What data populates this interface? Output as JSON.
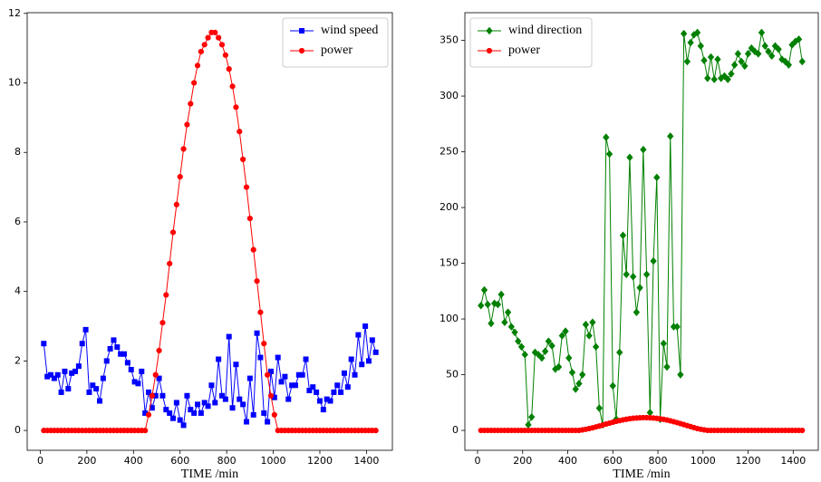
{
  "chart_data": [
    {
      "type": "line",
      "xlabel": "TIME /min",
      "x": [
        15,
        30,
        45,
        60,
        75,
        90,
        105,
        120,
        135,
        150,
        165,
        180,
        195,
        210,
        225,
        240,
        255,
        270,
        285,
        300,
        315,
        330,
        345,
        360,
        375,
        390,
        405,
        420,
        435,
        450,
        465,
        480,
        495,
        510,
        525,
        540,
        555,
        570,
        585,
        600,
        615,
        630,
        645,
        660,
        675,
        690,
        705,
        720,
        735,
        750,
        765,
        780,
        795,
        810,
        825,
        840,
        855,
        870,
        885,
        900,
        915,
        930,
        945,
        960,
        975,
        990,
        1005,
        1020,
        1035,
        1050,
        1065,
        1080,
        1095,
        1110,
        1125,
        1140,
        1155,
        1170,
        1185,
        1200,
        1215,
        1230,
        1245,
        1260,
        1275,
        1290,
        1305,
        1320,
        1335,
        1350,
        1365,
        1380,
        1395,
        1410,
        1425,
        1440
      ],
      "series": [
        {
          "name": "wind speed",
          "color": "#0000ff",
          "marker": "square",
          "values": [
            2.5,
            1.55,
            1.6,
            1.5,
            1.6,
            1.1,
            1.7,
            1.2,
            1.65,
            1.7,
            1.85,
            2.5,
            2.9,
            1.1,
            1.3,
            1.2,
            0.85,
            1.5,
            2.0,
            2.35,
            2.6,
            2.4,
            2.2,
            2.2,
            1.95,
            1.75,
            1.4,
            1.35,
            1.7,
            0.5,
            1.1,
            0.65,
            1.0,
            1.5,
            1.0,
            0.6,
            0.5,
            0.35,
            0.8,
            0.3,
            0.15,
            1.0,
            0.6,
            0.5,
            0.75,
            0.5,
            0.8,
            0.7,
            1.3,
            0.8,
            2.05,
            1.0,
            0.9,
            2.7,
            0.65,
            1.9,
            0.9,
            0.75,
            0.25,
            1.5,
            0.45,
            2.8,
            2.1,
            0.5,
            0.25,
            1.7,
            0.95,
            2.1,
            1.4,
            1.55,
            0.9,
            1.3,
            1.3,
            1.6,
            1.6,
            2.05,
            1.15,
            1.25,
            1.1,
            0.85,
            0.6,
            0.9,
            0.85,
            1.1,
            1.3,
            1.1,
            1.65,
            1.25,
            2.05,
            1.6,
            2.75,
            1.9,
            3.0,
            2.0,
            2.6,
            2.25
          ]
        },
        {
          "name": "power",
          "color": "#ff0000",
          "marker": "circle",
          "values": [
            0,
            0,
            0,
            0,
            0,
            0,
            0,
            0,
            0,
            0,
            0,
            0,
            0,
            0,
            0,
            0,
            0,
            0,
            0,
            0,
            0,
            0,
            0,
            0,
            0,
            0,
            0,
            0,
            0,
            0,
            0.45,
            1.0,
            1.6,
            2.3,
            3.1,
            3.9,
            4.8,
            5.7,
            6.5,
            7.3,
            8.1,
            8.8,
            9.4,
            10.0,
            10.5,
            10.9,
            11.1,
            11.3,
            11.45,
            11.45,
            11.3,
            11.1,
            10.8,
            10.4,
            9.9,
            9.3,
            8.6,
            7.8,
            7.0,
            6.1,
            5.2,
            4.3,
            3.4,
            2.5,
            1.6,
            1.0,
            0.45,
            0,
            0,
            0,
            0,
            0,
            0,
            0,
            0,
            0,
            0,
            0,
            0,
            0,
            0,
            0,
            0,
            0,
            0,
            0,
            0,
            0,
            0,
            0,
            0,
            0,
            0,
            0,
            0,
            0
          ]
        }
      ],
      "xlim": [
        -56.25,
        1511.25
      ],
      "xticks": [
        0,
        200,
        400,
        600,
        800,
        1000,
        1200,
        1400
      ],
      "ylim": [
        -0.57,
        12.02
      ],
      "yticks": [
        0,
        2,
        4,
        6,
        8,
        10,
        12
      ],
      "legend": "upper right"
    },
    {
      "type": "line",
      "xlabel": "TIME /min",
      "x": [
        15,
        30,
        45,
        60,
        75,
        90,
        105,
        120,
        135,
        150,
        165,
        180,
        195,
        210,
        225,
        240,
        255,
        270,
        285,
        300,
        315,
        330,
        345,
        360,
        375,
        390,
        405,
        420,
        435,
        450,
        465,
        480,
        495,
        510,
        525,
        540,
        555,
        570,
        585,
        600,
        615,
        630,
        645,
        660,
        675,
        690,
        705,
        720,
        735,
        750,
        765,
        780,
        795,
        810,
        825,
        840,
        855,
        870,
        885,
        900,
        915,
        930,
        945,
        960,
        975,
        990,
        1005,
        1020,
        1035,
        1050,
        1065,
        1080,
        1095,
        1110,
        1125,
        1140,
        1155,
        1170,
        1185,
        1200,
        1215,
        1230,
        1245,
        1260,
        1275,
        1290,
        1305,
        1320,
        1335,
        1350,
        1365,
        1380,
        1395,
        1410,
        1425,
        1440
      ],
      "series": [
        {
          "name": "wind direction",
          "color": "#008000",
          "marker": "diamond",
          "values": [
            112,
            126,
            113,
            96,
            114,
            113,
            122,
            97,
            106,
            93,
            88,
            80,
            75,
            68,
            5,
            12,
            70,
            68,
            65,
            71,
            80,
            76,
            55,
            57,
            85,
            89,
            65,
            52,
            37,
            42,
            50,
            95,
            85,
            97,
            75,
            20,
            5,
            263,
            248,
            40,
            10,
            70,
            175,
            140,
            245,
            138,
            106,
            128,
            252,
            140,
            16,
            152,
            227,
            10,
            78,
            57,
            264,
            93,
            93,
            50,
            356,
            331,
            348,
            355,
            357,
            345,
            332,
            316,
            335,
            315,
            333,
            316,
            318,
            315,
            320,
            328,
            338,
            331,
            327,
            338,
            343,
            340,
            338,
            357,
            345,
            340,
            336,
            345,
            342,
            333,
            331,
            328,
            346,
            349,
            351,
            331
          ]
        },
        {
          "name": "power",
          "color": "#ff0000",
          "marker": "circle",
          "values": [
            0,
            0,
            0,
            0,
            0,
            0,
            0,
            0,
            0,
            0,
            0,
            0,
            0,
            0,
            0,
            0,
            0,
            0,
            0,
            0,
            0,
            0,
            0,
            0,
            0,
            0,
            0,
            0,
            0,
            0,
            0.45,
            1.0,
            1.6,
            2.3,
            3.1,
            3.9,
            4.8,
            5.7,
            6.5,
            7.3,
            8.1,
            8.8,
            9.4,
            10.0,
            10.5,
            10.9,
            11.1,
            11.3,
            11.45,
            11.45,
            11.3,
            11.1,
            10.8,
            10.4,
            9.9,
            9.3,
            8.6,
            7.8,
            7.0,
            6.1,
            5.2,
            4.3,
            3.4,
            2.5,
            1.6,
            1.0,
            0.45,
            0,
            0,
            0,
            0,
            0,
            0,
            0,
            0,
            0,
            0,
            0,
            0,
            0,
            0,
            0,
            0,
            0,
            0,
            0,
            0,
            0,
            0,
            0,
            0,
            0,
            0,
            0,
            0,
            0
          ]
        }
      ],
      "xlim": [
        -56.25,
        1511.25
      ],
      "xticks": [
        0,
        200,
        400,
        600,
        800,
        1000,
        1200,
        1400
      ],
      "ylim": [
        -17.85,
        374.85
      ],
      "yticks": [
        0,
        50,
        100,
        150,
        200,
        250,
        300,
        350
      ],
      "legend": "upper left"
    }
  ]
}
